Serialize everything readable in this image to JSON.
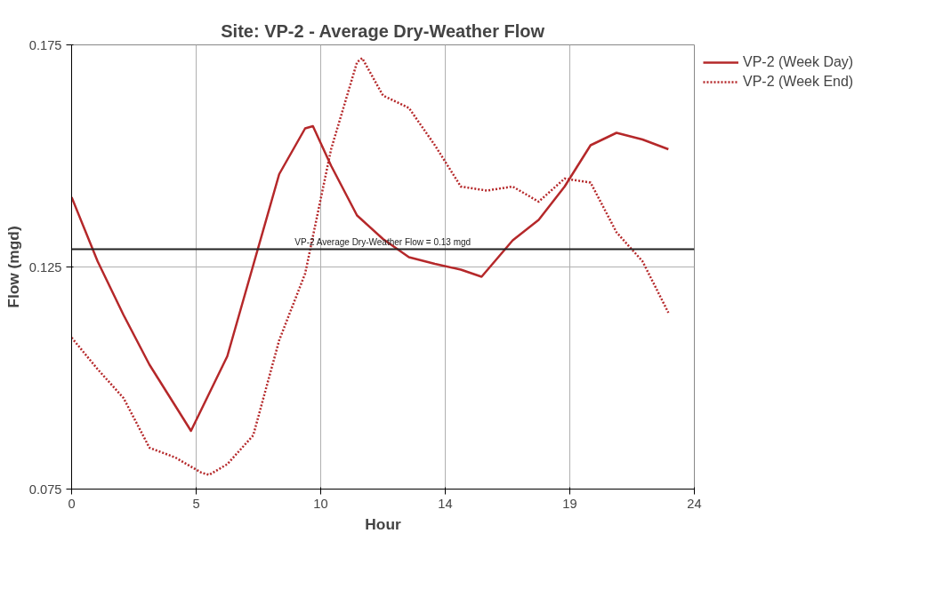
{
  "chart_data": {
    "type": "line",
    "title": "Site: VP-2 - Average Dry-Weather Flow",
    "xlabel": "Hour",
    "ylabel": "Flow (mgd)",
    "xlim": [
      0,
      24
    ],
    "ylim": [
      0.075,
      0.175
    ],
    "xticks": [
      0,
      {
        "value": 4.8,
        "label": "5"
      },
      {
        "value": 9.6,
        "label": "10"
      },
      {
        "value": 14.4,
        "label": "14"
      },
      {
        "value": 19.2,
        "label": "19"
      },
      24
    ],
    "yticks": [
      0.075,
      0.125,
      0.175
    ],
    "grid": true,
    "legend": "top right",
    "marker": "none",
    "ref_lines": [
      {
        "axis": "y",
        "value": 0.129,
        "label": "VP-2 Average Dry-Weather Flow = 0.13 mgd",
        "color": "#222222"
      }
    ],
    "series": [
      {
        "name": "VP-2 (Week Day)",
        "color": "#b5282a",
        "line_style": "solid",
        "x": [
          0,
          1,
          2,
          3,
          4,
          4.6,
          6,
          7,
          8,
          9,
          9.3,
          10,
          11,
          12,
          13,
          14,
          15,
          15.8,
          17,
          18,
          19,
          20,
          21,
          22,
          23
        ],
        "values": [
          0.1407,
          0.1263,
          0.1142,
          0.103,
          0.0937,
          0.0881,
          0.1049,
          0.1254,
          0.1459,
          0.1562,
          0.1567,
          0.1478,
          0.1366,
          0.1313,
          0.1272,
          0.1257,
          0.1244,
          0.1228,
          0.131,
          0.1356,
          0.1431,
          0.1524,
          0.1552,
          0.1537,
          0.1515
        ]
      },
      {
        "name": "VP-2 (Week End)",
        "color": "#b5282a",
        "line_style": "dotted",
        "x": [
          0,
          1,
          2,
          3,
          4,
          5,
          5.3,
          6,
          7,
          8,
          9,
          10,
          11,
          11.2,
          12,
          13,
          14,
          15,
          16,
          17,
          18,
          19,
          20,
          21,
          22,
          23
        ],
        "values": [
          0.1091,
          0.102,
          0.0955,
          0.0843,
          0.0821,
          0.0787,
          0.0782,
          0.0806,
          0.0871,
          0.1085,
          0.1235,
          0.1515,
          0.1711,
          0.172,
          0.1636,
          0.1608,
          0.1524,
          0.1431,
          0.1422,
          0.1431,
          0.1397,
          0.1449,
          0.144,
          0.1328,
          0.1263,
          0.1147
        ]
      }
    ]
  }
}
